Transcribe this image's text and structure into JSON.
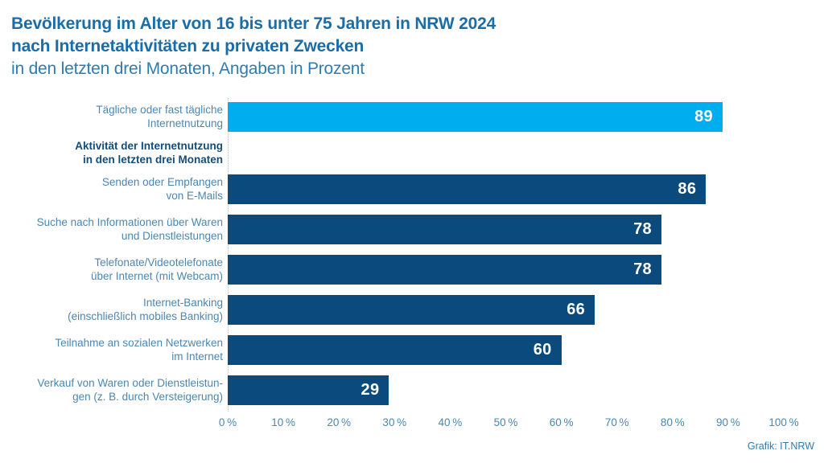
{
  "title": {
    "line1": "Bevölkerung im Alter von 16 bis unter 75 Jahren in NRW 2024",
    "line2": "nach Internetaktivitäten zu privaten Zwecken",
    "line3": "in den letzten drei Monaten, Angaben in Prozent"
  },
  "chart_data": {
    "type": "bar",
    "orientation": "horizontal",
    "unit": "percent",
    "xlim": [
      0,
      100
    ],
    "x_tick_values": [
      0,
      10,
      20,
      30,
      40,
      50,
      60,
      70,
      80,
      90,
      100
    ],
    "x_tick_labels": [
      "0 %",
      "10 %",
      "20 %",
      "30 %",
      "40 %",
      "50 %",
      "60 %",
      "70 %",
      "80 %",
      "90 %",
      "100 %"
    ],
    "group_header_lines": [
      "Aktivität der Internetnutzung",
      "in den letzten drei Monaten"
    ],
    "group_header_insert_after_index": 0,
    "rows": [
      {
        "label_lines": [
          "Tägliche oder fast tägliche",
          "Internetnutzung"
        ],
        "value": 89,
        "color": "#00aeef"
      },
      {
        "label_lines": [
          "Senden oder Empfangen",
          "von E-Mails"
        ],
        "value": 86,
        "color": "#0a4a7d"
      },
      {
        "label_lines": [
          "Suche nach Informationen über Waren",
          "und Dienstleistungen"
        ],
        "value": 78,
        "color": "#0a4a7d"
      },
      {
        "label_lines": [
          "Telefonate/Videotelefonate",
          "über Internet (mit Webcam)"
        ],
        "value": 78,
        "color": "#0a4a7d"
      },
      {
        "label_lines": [
          "Internet-Banking",
          "(einschließlich mobiles Banking)"
        ],
        "value": 66,
        "color": "#0a4a7d"
      },
      {
        "label_lines": [
          "Teilnahme an sozialen Netzwerken",
          "im Internet"
        ],
        "value": 60,
        "color": "#0a4a7d"
      },
      {
        "label_lines": [
          "Verkauf von Waren oder Dienstleistun-",
          "gen (z. B. durch Versteigerung)"
        ],
        "value": 29,
        "color": "#0a4a7d"
      }
    ]
  },
  "footer": {
    "credit": "Grafik: IT.NRW"
  },
  "colors": {
    "bar_highlight": "#00aeef",
    "bar_default": "#0a4a7d",
    "title": "#1b6da8",
    "subtitle": "#2e7cb0",
    "category_label": "#4a87b2",
    "group_header": "#134d7c",
    "tick_label": "#4a87b2",
    "value_text": "#ffffff",
    "zero_line": "#b9cbd9"
  }
}
